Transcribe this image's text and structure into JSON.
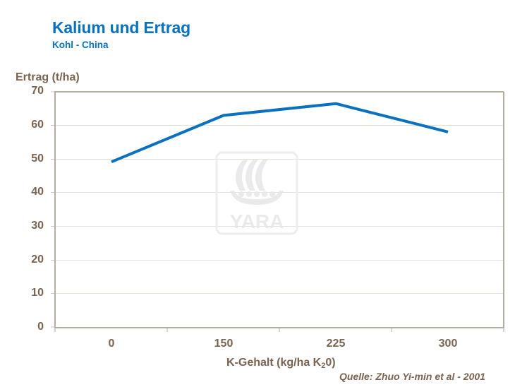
{
  "header": {
    "title": "Kalium und Ertrag",
    "subtitle": "Kohl - China"
  },
  "watermark": {
    "logo_icon": "yara-viking-ship-logo",
    "text": "YARA"
  },
  "source": "Quelle: Zhuo Yi-min et al - 2001",
  "colors": {
    "title": "#0a71c0",
    "line": "#0a71c0",
    "axis_text": "#7a6450",
    "axis_line": "#b5aca2",
    "grid": "#e6e1db"
  },
  "chart_data": {
    "type": "line",
    "title": "Kalium und Ertrag",
    "subtitle": "Kohl - China",
    "xlabel": "K-Gehalt (kg/ha K20)",
    "xlabel_main": "K-Gehalt (kg/ha K",
    "xlabel_sub": "2",
    "xlabel_tail": "0)",
    "ylabel": "Ertrag (t/ha)",
    "categories": [
      "0",
      "150",
      "225",
      "300"
    ],
    "series": [
      {
        "name": "Ertrag",
        "values": [
          49.2,
          63.0,
          66.5,
          58.1
        ]
      }
    ],
    "yticks": [
      "70",
      "60",
      "50",
      "40",
      "30",
      "20",
      "10",
      "0"
    ],
    "ylim": [
      0,
      70
    ],
    "grid": true,
    "legend": "none",
    "annotation": "Quelle: Zhuo Yi-min et al - 2001"
  }
}
